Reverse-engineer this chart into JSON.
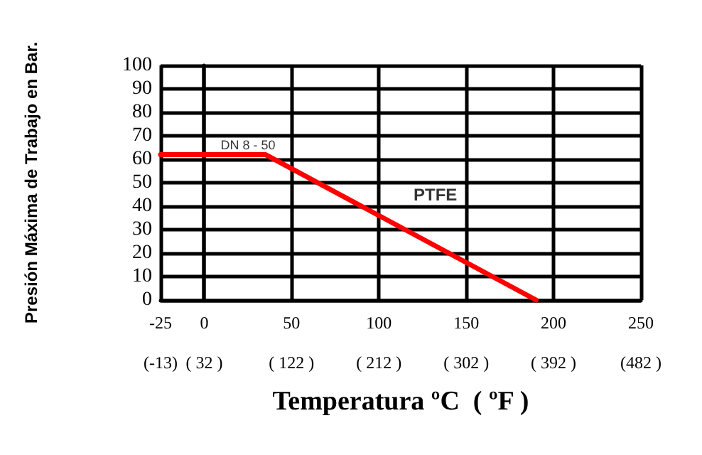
{
  "chart_data": {
    "type": "line",
    "xlabel": "Temperatura ºC  ( ºF )",
    "ylabel": "Presión Máxima de Trabajo en Bar.",
    "xlim": [
      -25,
      250
    ],
    "xticks": [
      -25,
      0,
      50,
      100,
      150,
      200,
      250
    ],
    "x2lim": [
      -13,
      482
    ],
    "x2ticks": [
      {
        "value": -13,
        "label": "(-13)"
      },
      {
        "value": 32,
        "label": "( 32 )"
      },
      {
        "value": 122,
        "label": "( 122 )"
      },
      {
        "value": 212,
        "label": "( 212 )"
      },
      {
        "value": 302,
        "label": "( 302 )"
      },
      {
        "value": 392,
        "label": "( 392 )"
      },
      {
        "value": 482,
        "label": "(482 )"
      }
    ],
    "ylim": [
      0,
      100
    ],
    "yticks": [
      0,
      10,
      20,
      30,
      40,
      50,
      60,
      70,
      80,
      90,
      100
    ],
    "series": [
      {
        "name": "PTFE",
        "color": "#ff0000",
        "x": [
          -25,
          35,
          190
        ],
        "values": [
          62,
          62,
          0
        ]
      }
    ],
    "annotations": [
      {
        "text": "DN 8 - 50",
        "x": 25,
        "y": 62
      }
    ],
    "grid": true,
    "legend": false,
    "marker": "none",
    "line_style": "solid"
  }
}
